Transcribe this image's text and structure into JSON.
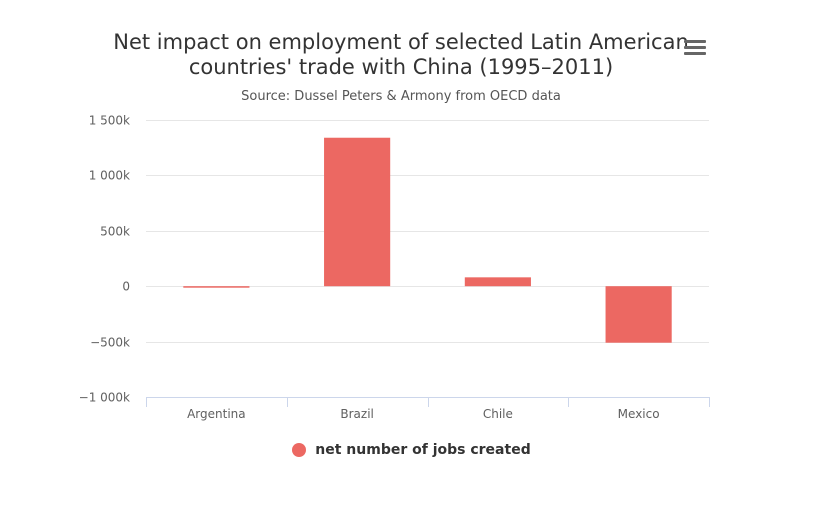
{
  "chart_data": {
    "type": "bar",
    "title_lines": [
      "Net impact on employment of selected Latin American",
      "countries' trade with China (1995–2011)"
    ],
    "subtitle": "Source: Dussel Peters & Armony from OECD data",
    "categories": [
      "Argentina",
      "Brazil",
      "Chile",
      "Mexico"
    ],
    "series": [
      {
        "name": "net number of jobs created",
        "values": [
          -10000,
          1340000,
          80000,
          -510000
        ]
      }
    ],
    "ylim": [
      -1000000,
      1500000
    ],
    "yticks": [
      1500000,
      1000000,
      500000,
      0,
      -500000,
      -1000000
    ],
    "ytick_labels": [
      "1 500k",
      "1 000k",
      "500k",
      "0",
      "−500k",
      "−1 000k"
    ],
    "xlabel": "",
    "ylabel": "",
    "grid": true,
    "legend_position": "bottom-center"
  },
  "colors": {
    "bar": "#ec6862",
    "grid": "#e6e6e6",
    "axis": "#ccd6eb",
    "label": "#606060"
  },
  "menu_icon": "hamburger-menu-icon"
}
